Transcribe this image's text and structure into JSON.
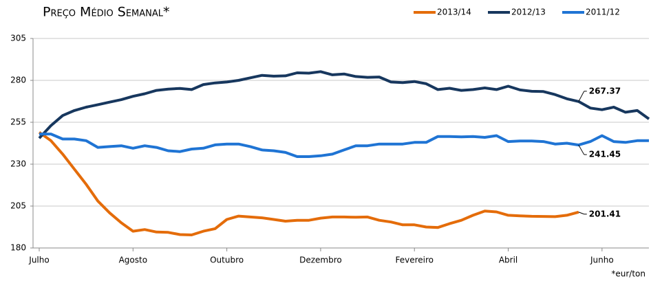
{
  "chart_data": {
    "type": "line",
    "title": "Preço Médio Semanal*",
    "footnote": "*eur/ton",
    "categories": [
      "Julho",
      null,
      null,
      null,
      null,
      null,
      null,
      null,
      "Agosto",
      null,
      null,
      null,
      null,
      null,
      null,
      null,
      "Outubro",
      null,
      null,
      null,
      null,
      null,
      null,
      null,
      "Dezembro",
      null,
      null,
      null,
      null,
      null,
      null,
      null,
      "Fevereiro",
      null,
      null,
      null,
      null,
      null,
      null,
      null,
      "Abril",
      null,
      null,
      null,
      null,
      null,
      null,
      null,
      "Junho",
      null,
      null,
      null,
      null
    ],
    "series": [
      {
        "name": "2013/14",
        "color": "#e46c0a",
        "values": [
          249,
          244,
          236,
          227,
          218,
          208,
          201,
          195,
          190,
          191,
          189.5,
          189.3,
          188,
          187.8,
          190,
          191.5,
          197,
          199,
          198.5,
          198,
          197,
          196,
          196.5,
          196.5,
          197.8,
          198.5,
          198.5,
          198.3,
          198.5,
          196.5,
          195.5,
          193.8,
          193.8,
          192.5,
          192.2,
          194.5,
          196.5,
          199.5,
          202,
          201.5,
          199.5,
          199.2,
          198.9,
          198.8,
          198.7,
          199.5,
          201.41,
          null,
          null,
          null,
          null,
          null,
          null
        ]
      },
      {
        "name": "2012/13",
        "color": "#17375e",
        "values": [
          245.5,
          253,
          259,
          262,
          264,
          265.5,
          267,
          268.5,
          270.5,
          272,
          274,
          274.8,
          275.2,
          274.5,
          277.5,
          278.5,
          279,
          280,
          281.5,
          283,
          282.5,
          282.7,
          284.5,
          284.3,
          285.2,
          283.3,
          283.8,
          282.3,
          281.8,
          282,
          279,
          278.7,
          279.3,
          278,
          274.5,
          275.3,
          274,
          274.5,
          275.5,
          274.5,
          276.5,
          274.3,
          273.5,
          273.3,
          271.5,
          269,
          267.37,
          263.5,
          262.5,
          264,
          261,
          262,
          257
        ]
      },
      {
        "name": "2011/12",
        "color": "#1f74d4",
        "values": [
          248,
          248,
          245,
          245,
          244,
          240,
          240.5,
          241,
          239.5,
          241,
          240,
          238,
          237.5,
          239,
          239.5,
          241.5,
          242,
          242,
          240.5,
          238.5,
          238,
          237,
          234.5,
          234.5,
          235,
          236,
          238.5,
          241,
          241,
          242,
          242,
          242,
          243,
          243,
          246.5,
          246.5,
          246.3,
          246.5,
          246,
          247,
          243.5,
          243.8,
          243.8,
          243.5,
          242,
          242.5,
          241.45,
          243.5,
          247,
          243.5,
          243,
          244,
          244
        ]
      }
    ],
    "ylim": [
      180,
      305
    ],
    "yticks": [
      180,
      205,
      230,
      255,
      280,
      305
    ],
    "grid": true,
    "legend": "top-right"
  }
}
